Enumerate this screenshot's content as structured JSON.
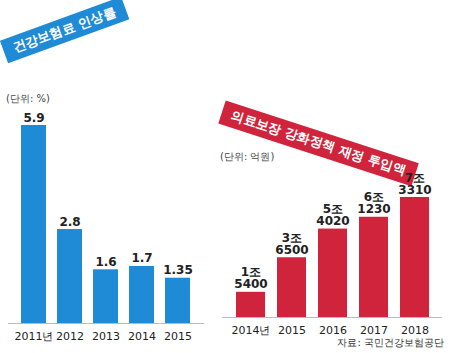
{
  "chart_data": [
    {
      "type": "bar",
      "title": "건강보험료 인상률",
      "subtitle": "(단위: %)",
      "categories": [
        "2011년",
        "2012",
        "2013",
        "2014",
        "2015"
      ],
      "values": [
        5.9,
        2.8,
        1.6,
        1.7,
        1.35
      ],
      "color": "#1f8ad6",
      "ylim": [
        0,
        5.9
      ],
      "yticks": [],
      "data_labels": true,
      "tick_labels": "x",
      "grid": false
    },
    {
      "type": "bar",
      "title": "의료보장 강화정책 재정 투입액",
      "subtitle": "(단위: 억원)",
      "categories": [
        "2014년",
        "2015",
        "2016",
        "2017",
        "2018"
      ],
      "values": [
        15400,
        36500,
        54020,
        61230,
        73310
      ],
      "value_labels": [
        "1조\n5400",
        "3조\n6500",
        "5조\n4020",
        "6조\n1230",
        "7조\n3310"
      ],
      "color": "#d0243c",
      "ylim": [
        0,
        73310
      ],
      "yticks": [],
      "data_labels": true,
      "tick_labels": "x",
      "grid": false,
      "caption": "자료: 국민건강보험공단"
    }
  ]
}
